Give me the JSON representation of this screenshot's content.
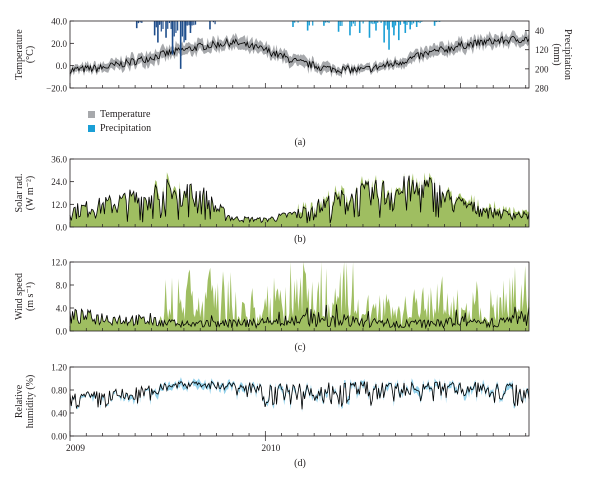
{
  "legend": {
    "temperature": "Temperature",
    "precipitation": "Precipitation"
  },
  "chart_data": [
    {
      "id": "a",
      "type": "line",
      "caption": "(a)",
      "ylabel": [
        "Temperature",
        "(°C)"
      ],
      "y2label": [
        "Precipitation",
        "(mm)"
      ],
      "ylim": [
        -20,
        40
      ],
      "yticks": [
        -20,
        0,
        20,
        40
      ],
      "yticklabels": [
        "−20.0",
        "0.0",
        "20.0",
        "40.0"
      ],
      "y2lim": [
        280,
        0
      ],
      "y2ticks": [
        40,
        120,
        200,
        280
      ],
      "y2ticklabels": [
        "40",
        "120",
        "200",
        "280"
      ],
      "series": [
        {
          "name": "Temperature",
          "kind": "band-line",
          "color": "#000000",
          "band_color": "#a7a9ac",
          "x_months": [
            0,
            2,
            4,
            6,
            8,
            10,
            12,
            14,
            16,
            18,
            20,
            22,
            24,
            26,
            28
          ],
          "values": [
            -4,
            -2,
            4,
            11,
            17,
            21,
            14,
            3,
            -3,
            -4,
            2,
            11,
            18,
            22,
            24
          ],
          "band": [
            3,
            4,
            5,
            5,
            5,
            5,
            5,
            5,
            4,
            3,
            4,
            5,
            5,
            5,
            5
          ]
        },
        {
          "name": "Precipitation",
          "kind": "bars-from-top",
          "color": "#1a9fd6",
          "x_months": [
            4.1,
            5.2,
            5.4,
            5.9,
            6.3,
            6.8,
            7.1,
            7.4,
            8.6,
            13.7,
            14.6,
            15.6,
            16.5,
            17.2,
            17.8,
            18.4,
            18.8,
            19.3,
            19.6,
            19.9,
            20.2,
            20.6,
            20.9,
            21.3,
            22.4
          ],
          "values": [
            30,
            60,
            90,
            70,
            140,
            200,
            80,
            50,
            35,
            25,
            40,
            20,
            45,
            60,
            50,
            70,
            40,
            90,
            120,
            60,
            80,
            50,
            35,
            25,
            20
          ]
        }
      ],
      "grid": false
    },
    {
      "id": "b",
      "type": "line",
      "caption": "(b)",
      "ylabel": [
        "Solar rad.",
        "(W m⁻²)"
      ],
      "ylim": [
        0,
        36
      ],
      "yticks": [
        0,
        12,
        24,
        36
      ],
      "yticklabels": [
        "0.0",
        "12.0",
        "24.0",
        "36.0"
      ],
      "series": [
        {
          "name": "Solar radiation",
          "kind": "noisy-line",
          "color": "#000000",
          "band_color": "#9aba59",
          "x_months": [
            0,
            2,
            4,
            6,
            8,
            9,
            10,
            12,
            14,
            16,
            18,
            20,
            22,
            24,
            26,
            28
          ],
          "envelope": [
            12,
            16,
            21,
            26,
            24,
            14,
            6,
            5,
            10,
            18,
            24,
            27,
            28,
            16,
            10,
            8
          ],
          "low": [
            3,
            3,
            2,
            2,
            2,
            2,
            2,
            2,
            2,
            2,
            2,
            2,
            3,
            5,
            4,
            3
          ]
        }
      ],
      "grid": false
    },
    {
      "id": "c",
      "type": "line",
      "caption": "(c)",
      "ylabel": [
        "Wind speed",
        "(m s⁻¹)"
      ],
      "ylim": [
        0,
        12
      ],
      "yticks": [
        0,
        4,
        8,
        12
      ],
      "yticklabels": [
        "0.0",
        "4.0",
        "8.0",
        "12.0"
      ],
      "series": [
        {
          "name": "Wind speed",
          "kind": "noisy-line",
          "color": "#000000",
          "band_color": "#9aba59",
          "x_months": [
            0,
            2,
            4,
            6,
            8,
            10,
            12,
            14,
            16,
            18,
            20,
            22,
            24,
            26,
            28
          ],
          "envelope": [
            4,
            3.5,
            3,
            2,
            2,
            2,
            2.5,
            3,
            3,
            2.5,
            2,
            2,
            2.5,
            2.5,
            3
          ],
          "low": [
            1,
            1,
            0.8,
            0.6,
            0.5,
            0.5,
            0.6,
            0.7,
            0.6,
            0.6,
            0.5,
            0.5,
            0.6,
            0.6,
            0.8
          ],
          "band_peak": [
            0,
            0,
            0,
            8,
            10,
            8,
            4,
            11,
            10,
            9,
            8,
            7,
            8,
            9,
            8
          ]
        }
      ],
      "grid": false
    },
    {
      "id": "d",
      "type": "line",
      "caption": "(d)",
      "ylabel": [
        "Relative",
        "humidity (%)"
      ],
      "ylim": [
        0,
        1.2
      ],
      "yticks": [
        0,
        0.4,
        0.8,
        1.2
      ],
      "yticklabels": [
        "0.00",
        "0.40",
        "0.80",
        "1.20"
      ],
      "x_tick_labels": [
        "2009",
        "2010"
      ],
      "series": [
        {
          "name": "Relative humidity",
          "kind": "noisy-line",
          "color": "#000000",
          "band_color": "#8fd0ea",
          "x_months": [
            0,
            2,
            4,
            6,
            8,
            10,
            12,
            14,
            16,
            18,
            20,
            22,
            24,
            26,
            28
          ],
          "envelope": [
            0.75,
            0.8,
            0.85,
            0.95,
            0.95,
            0.95,
            0.92,
            0.92,
            0.95,
            0.95,
            0.95,
            0.95,
            0.95,
            0.95,
            0.9
          ],
          "low": [
            0.45,
            0.4,
            0.45,
            0.75,
            0.85,
            0.7,
            0.5,
            0.4,
            0.45,
            0.45,
            0.5,
            0.55,
            0.65,
            0.5,
            0.45
          ]
        }
      ],
      "grid": false
    }
  ]
}
